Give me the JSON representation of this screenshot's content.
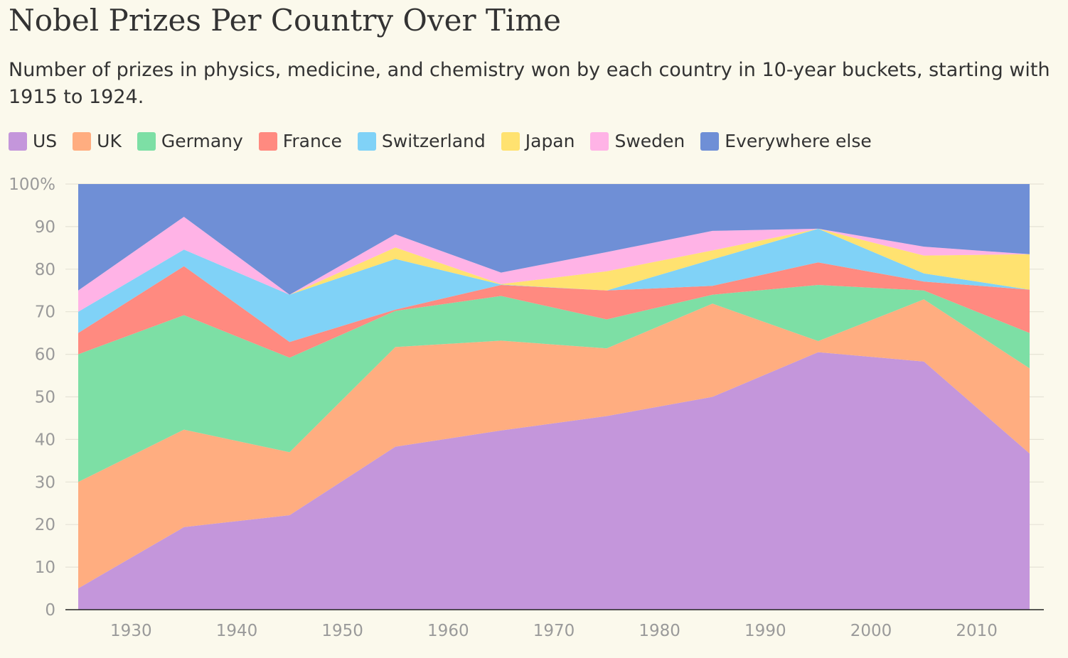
{
  "header": {
    "title": "Nobel Prizes Per Country Over Time",
    "subtitle": "Number of prizes in physics, medicine, and chemistry won by each country in 10-year buckets, starting with 1915 to 1924."
  },
  "chart_data": {
    "type": "area",
    "stacked": true,
    "x": [
      1925,
      1935,
      1945,
      1955,
      1965,
      1975,
      1985,
      1995,
      2005,
      2015
    ],
    "ylim": [
      0,
      100
    ],
    "y_ticks": [
      "100%",
      "90",
      "80",
      "70",
      "60",
      "50",
      "40",
      "30",
      "20",
      "10",
      "0"
    ],
    "x_ticks": [
      "1930",
      "1940",
      "1950",
      "1960",
      "1970",
      "1980",
      "1990",
      "2000",
      "2010"
    ],
    "grid": true,
    "legend_position": "top-left",
    "series": [
      {
        "name": "US",
        "color": "#c496db",
        "values": [
          5,
          19.4,
          22.2,
          38.3,
          42.1,
          45.5,
          50,
          60.5,
          58.3,
          36.7
        ]
      },
      {
        "name": "UK",
        "color": "#ffad80",
        "values": [
          25,
          22.9,
          14.8,
          23.4,
          21.1,
          15.9,
          21.9,
          2.6,
          14.6,
          20
        ]
      },
      {
        "name": "Germany",
        "color": "#7ddfa5",
        "values": [
          30,
          26.9,
          22.2,
          8.5,
          10.5,
          6.8,
          2.1,
          13.2,
          2.1,
          8.3
        ]
      },
      {
        "name": "France",
        "color": "#ff8a80",
        "values": [
          5,
          11.5,
          3.7,
          0.3,
          2.6,
          6.8,
          2.1,
          5.3,
          2.1,
          10.2
        ]
      },
      {
        "name": "Switzerland",
        "color": "#80d2f7",
        "values": [
          5,
          3.9,
          11.1,
          11.9,
          0.1,
          0,
          6.2,
          7.9,
          1.9,
          0
        ]
      },
      {
        "name": "Japan",
        "color": "#ffe270",
        "values": [
          0,
          0,
          0,
          2.7,
          0.1,
          4.5,
          2.1,
          0,
          4.2,
          8.3
        ]
      },
      {
        "name": "Sweden",
        "color": "#ffb3e6",
        "values": [
          5,
          7.7,
          0,
          3.1,
          2.7,
          4.5,
          4.6,
          0,
          2.1,
          0
        ]
      },
      {
        "name": "Everywhere else",
        "color": "#6f8fd6",
        "values": [
          25,
          7.7,
          26,
          11.8,
          21.1,
          16,
          11,
          10.5,
          14.7,
          16.5
        ]
      }
    ]
  }
}
